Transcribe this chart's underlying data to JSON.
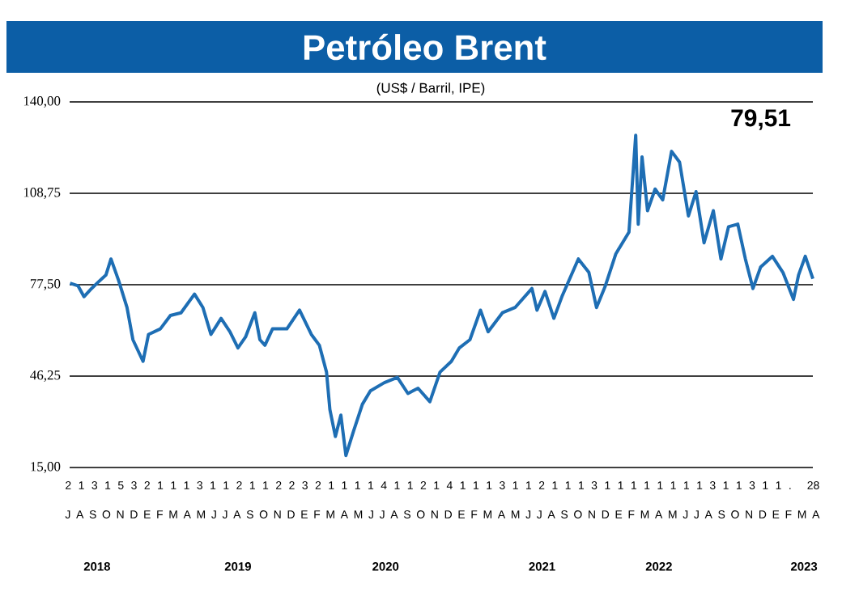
{
  "chart_data": {
    "type": "line",
    "title": "Petróleo Brent",
    "subtitle": "(US$ / Barril, IPE)",
    "annotations": [
      "79,51",
      "2 1 3 1 5 3 2 1 1 1 3 1 1 2 1 1 2 2 3 2 1 1 1 1 4 1 1 2 1 4 1 1 1 3 1 1 2 1 1 1 3 1 1 1 1 1 1 1 1 3 1 1 3 1 1 . 28",
      "J A S O N D E F M A M J J A S O N D E F M A M J J A S O N D E F M A M J J A S O N D E F M A M J J A S O N D E F M A"
    ],
    "x": [
      "2018-07-02",
      "2018-07-21",
      "2018-08-04",
      "2018-08-22",
      "2018-09-04",
      "2018-09-25",
      "2018-10-07",
      "2018-10-25",
      "2018-11-14",
      "2018-11-28",
      "2018-12-22",
      "2019-01-04",
      "2019-02-01",
      "2019-02-25",
      "2019-03-22",
      "2019-04-23",
      "2019-05-13",
      "2019-06-01",
      "2019-06-25",
      "2019-07-16",
      "2019-08-04",
      "2019-08-22",
      "2019-09-13",
      "2019-09-25",
      "2019-10-07",
      "2019-10-25",
      "2019-11-28",
      "2019-12-28",
      "2020-01-25",
      "2020-02-13",
      "2020-03-01",
      "2020-03-09",
      "2020-03-22",
      "2020-04-04",
      "2020-04-16",
      "2020-05-04",
      "2020-05-25",
      "2020-06-13",
      "2020-07-16",
      "2020-08-16",
      "2020-09-10",
      "2020-10-04",
      "2020-11-01",
      "2020-11-25",
      "2020-12-22",
      "2021-01-10",
      "2021-02-04",
      "2021-03-01",
      "2021-03-19",
      "2021-04-22",
      "2021-05-22",
      "2021-07-01",
      "2021-07-13",
      "2021-08-01",
      "2021-08-22",
      "2021-09-10",
      "2021-10-19",
      "2021-11-13",
      "2021-12-01",
      "2021-12-22",
      "2022-01-16",
      "2022-02-16",
      "2022-03-04",
      "2022-03-10",
      "2022-03-19",
      "2022-04-01",
      "2022-04-19",
      "2022-05-07",
      "2022-05-28",
      "2022-06-16",
      "2022-07-07",
      "2022-07-25",
      "2022-08-13",
      "2022-09-04",
      "2022-09-22",
      "2022-10-10",
      "2022-11-01",
      "2022-11-19",
      "2022-12-07",
      "2022-12-25",
      "2023-01-22",
      "2023-02-16",
      "2023-03-13",
      "2023-03-25",
      "2023-04-10",
      "2023-04-28"
    ],
    "series": [
      {
        "color": "#1e6eb4",
        "values": [
          78.0,
          77.1,
          73.4,
          76.2,
          78,
          80.8,
          86.3,
          79,
          69.7,
          58.7,
          51.3,
          60.5,
          62.4,
          67,
          67.9,
          74.3,
          69.7,
          60.5,
          66,
          61.4,
          55.9,
          59.6,
          67.9,
          58.7,
          56.8,
          62.4,
          62.4,
          68.8,
          60.5,
          56.8,
          47.6,
          34.8,
          25.6,
          32.9,
          19.1,
          27.4,
          36.6,
          41.2,
          44,
          45.8,
          40.3,
          42.1,
          37.5,
          47.6,
          51.3,
          55.9,
          58.7,
          68.8,
          61.4,
          67.9,
          69.7,
          76.2,
          68.8,
          75.2,
          66,
          73.4,
          86.3,
          81.7,
          69.7,
          77.1,
          88.1,
          95.5,
          128.6,
          98.2,
          121.2,
          102.8,
          110.2,
          106.5,
          123.1,
          119.4,
          101,
          109.3,
          91.8,
          102.8,
          86.3,
          97.3,
          98.2,
          86.3,
          76.2,
          83.5,
          87.2,
          81.7,
          72.5,
          80.8,
          87.2,
          79.51
        ]
      }
    ],
    "xlim": [
      "2018-07-01",
      "2023-04-28"
    ],
    "ylim": [
      15,
      140
    ],
    "yticks": [
      {
        "value": 15,
        "label": "15,00"
      },
      {
        "value": 46.25,
        "label": "46,25"
      },
      {
        "value": 77.5,
        "label": "77,50"
      },
      {
        "value": 108.75,
        "label": "108,75"
      },
      {
        "value": 140,
        "label": "140,00"
      }
    ],
    "xticks": [
      {
        "value": "2018-09-04",
        "label": "2018"
      },
      {
        "value": "2019-08-04",
        "label": "2019"
      },
      {
        "value": "2020-07-19",
        "label": "2020"
      },
      {
        "value": "2021-07-25",
        "label": "2021"
      },
      {
        "value": "2022-04-28",
        "label": "2022"
      },
      {
        "value": "2023-04-07",
        "label": "2023"
      }
    ],
    "grid": "y"
  }
}
